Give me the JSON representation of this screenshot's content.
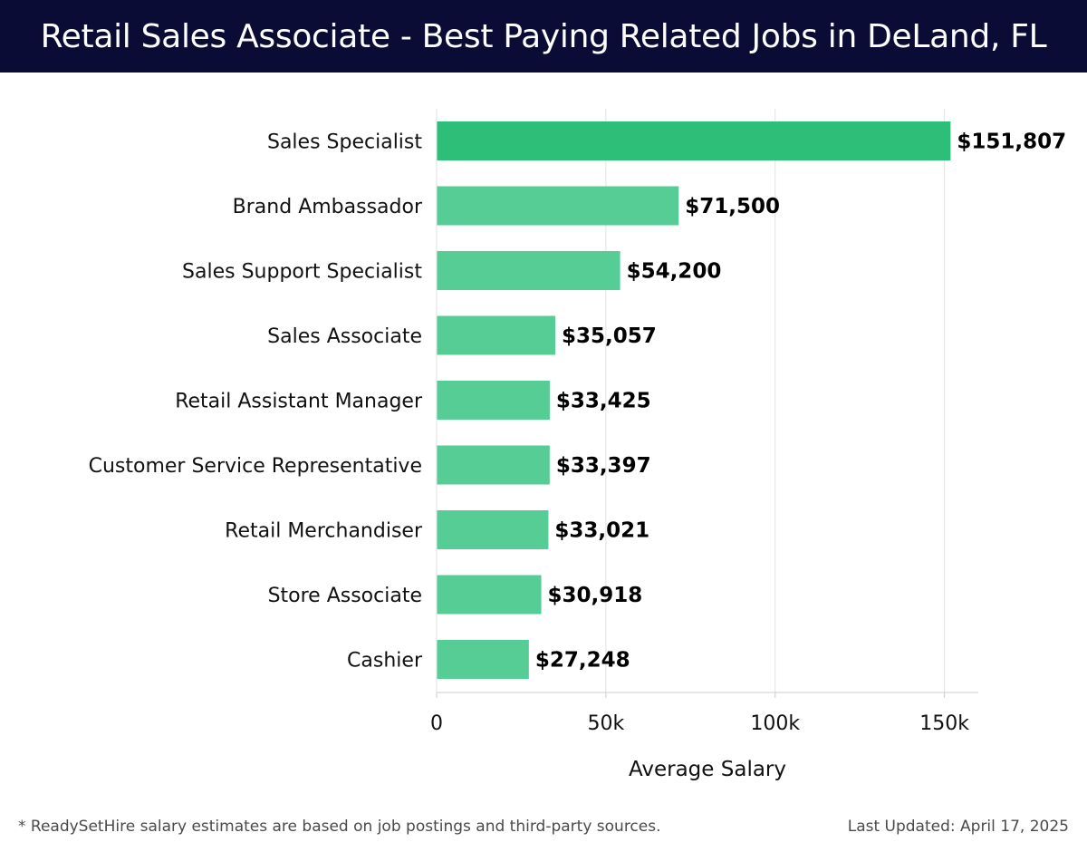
{
  "header": {
    "title": "Retail Sales Associate - Best Paying Related Jobs in DeLand, FL"
  },
  "chart_data": {
    "type": "bar",
    "orientation": "horizontal",
    "title": "Retail Sales Associate - Best Paying Related Jobs in DeLand, FL",
    "xlabel": "Average Salary",
    "ylabel": "",
    "xlim": [
      0,
      160000
    ],
    "ticks": [
      0,
      50000,
      100000,
      150000
    ],
    "tick_labels": [
      "0",
      "50k",
      "100k",
      "150k"
    ],
    "grid": true,
    "categories": [
      "Sales Specialist",
      "Brand Ambassador",
      "Sales Support Specialist",
      "Sales Associate",
      "Retail Assistant Manager",
      "Customer Service Representative",
      "Retail Merchandiser",
      "Store Associate",
      "Cashier"
    ],
    "values": [
      151807,
      71500,
      54200,
      35057,
      33425,
      33397,
      33021,
      30918,
      27248
    ],
    "value_labels": [
      "$151,807",
      "$71,500",
      "$54,200",
      "$35,057",
      "$33,425",
      "$33,397",
      "$33,021",
      "$30,918",
      "$27,248"
    ],
    "colors": {
      "top_bar": "#2dbf78",
      "bar": "#57cd96",
      "grid": "#e2e2e2",
      "axis": "#cccccc"
    }
  },
  "footer": {
    "note": "* ReadySetHire salary estimates are based on job postings and third-party sources.",
    "updated": "Last Updated: April 17, 2025"
  }
}
